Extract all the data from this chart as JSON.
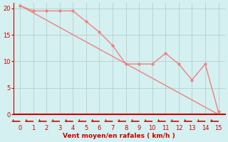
{
  "line1_x": [
    0,
    1,
    2,
    3,
    4,
    5,
    6,
    7,
    8,
    9,
    10,
    11,
    12,
    13,
    14,
    15
  ],
  "line1_y": [
    20.5,
    19.5,
    19.5,
    19.5,
    19.5,
    17.5,
    15.5,
    13.0,
    9.5,
    9.5,
    9.5,
    11.5,
    9.5,
    6.5,
    9.5,
    0.5
  ],
  "line2_x": [
    0,
    15
  ],
  "line2_y": [
    20.5,
    0.0
  ],
  "line_color": "#f08080",
  "marker_color": "#f08080",
  "bg_color": "#d4f0f0",
  "grid_color": "#b0c8c8",
  "axis_color": "#cc0000",
  "text_color": "#cc0000",
  "xlabel": "Vent moyen/en rafales ( km/h )",
  "xlim": [
    -0.5,
    15.5
  ],
  "ylim": [
    0,
    21
  ],
  "yticks": [
    0,
    5,
    10,
    15,
    20
  ],
  "xticks": [
    0,
    1,
    2,
    3,
    4,
    5,
    6,
    7,
    8,
    9,
    10,
    11,
    12,
    13,
    14,
    15
  ]
}
